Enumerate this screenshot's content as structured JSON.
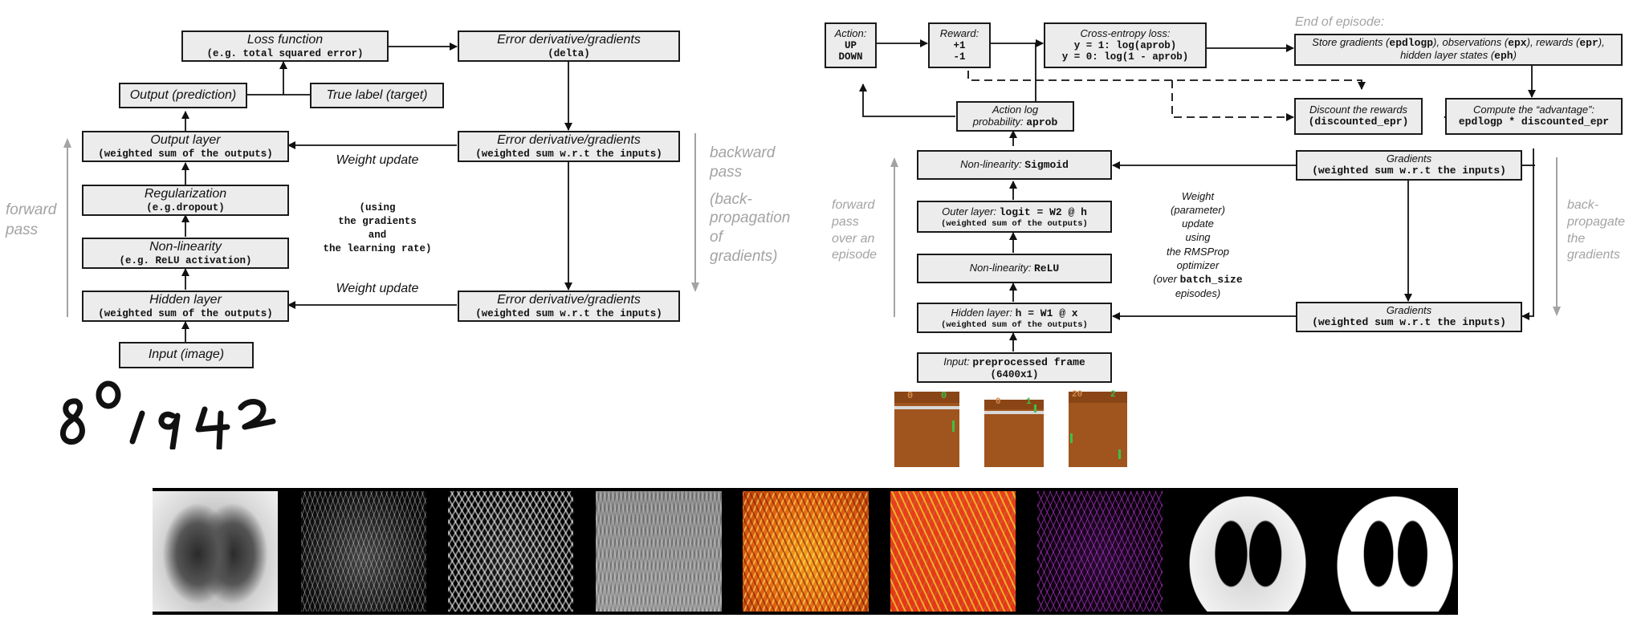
{
  "left_diagram": {
    "loss": {
      "title": "Loss function",
      "sub": "(e.g. total squared error)"
    },
    "error_top": {
      "title": "Error derivative/gradients",
      "sub": "(delta)"
    },
    "output_pred": "Output (prediction)",
    "true_label": "True label (target)",
    "output_layer": {
      "title": "Output layer",
      "sub": "(weighted sum of the outputs)"
    },
    "error_mid": {
      "title": "Error derivative/gradients",
      "sub": "(weighted sum w.r.t the inputs)"
    },
    "regularization": {
      "title": "Regularization",
      "sub": "(e.g.dropout)"
    },
    "nonlinearity": {
      "title": "Non-linearity",
      "sub": "(e.g. ReLU activation)"
    },
    "hidden_layer": {
      "title": "Hidden layer",
      "sub": "(weighted sum of the outputs)"
    },
    "error_bot": {
      "title": "Error derivative/gradients",
      "sub": "(weighted sum w.r.t the inputs)"
    },
    "input": "Input (image)",
    "weight_update_1": "Weight update",
    "weight_update_2": "Weight update",
    "using_note": [
      "(using",
      "the gradients",
      "and",
      "the learning rate)"
    ],
    "forward_pass": [
      "forward",
      "pass"
    ],
    "backward_pass": [
      "backward",
      "pass",
      "",
      "(back-",
      "propagation",
      "of",
      "gradients)"
    ],
    "handwritten_digits": "80,942"
  },
  "right_diagram": {
    "action": {
      "title": "Action:",
      "lines": [
        "UP",
        "DOWN"
      ]
    },
    "reward": {
      "title": "Reward:",
      "lines": [
        "+1",
        "-1"
      ]
    },
    "cross_entropy": {
      "title": "Cross-entropy loss:",
      "lines": [
        "y = 1: log(aprob)",
        "y = 0: log(1 - aprob)"
      ]
    },
    "end_of_episode": "End of episode:",
    "store_gradients": {
      "line1_parts": [
        "Store gradients (",
        "epdlogp",
        "), observations (",
        "epx",
        "), rewards (",
        "epr",
        "),"
      ],
      "line2_parts": [
        "hidden layer states (",
        "eph",
        ")"
      ]
    },
    "action_log": {
      "line1": "Action log",
      "line2_text": "probability: ",
      "line2_code": "aprob"
    },
    "discount": {
      "title": "Discount the rewards",
      "code": "(discounted_epr)"
    },
    "advantage": {
      "title": "Compute the “advantage”:",
      "code": "epdlogp * discounted_epr"
    },
    "sigmoid": {
      "text": "Non-linearity: ",
      "code": "Sigmoid"
    },
    "gradients_top": {
      "title": "Gradients",
      "sub": "(weighted sum w.r.t the inputs)"
    },
    "outer_layer": {
      "text": "Outer layer: ",
      "code": "logit = W2 @ h",
      "sub": "(weighted sum of the outputs)"
    },
    "relu": {
      "text": "Non-linearity: ",
      "code": "ReLU"
    },
    "hidden_layer": {
      "text": "Hidden layer: ",
      "code": "h = W1 @ x",
      "sub": "(weighted sum of the outputs)"
    },
    "gradients_bot": {
      "title": "Gradients",
      "sub": "(weighted sum w.r.t the inputs)"
    },
    "input": {
      "text": "Input: ",
      "code": "preprocessed frame",
      "sub": "(6400x1)"
    },
    "weight_note": [
      "Weight",
      "(parameter)",
      "update",
      "using",
      "the RMSProp",
      "optimizer",
      "(over "
    ],
    "weight_note_code": "batch_size",
    "weight_note_end": "episodes)",
    "forward_pass": [
      "forward",
      "pass",
      "over an",
      "episode"
    ],
    "backprop": [
      "back-",
      "propagate",
      "the",
      "gradients"
    ],
    "pong_scores": [
      [
        "0",
        "0"
      ],
      [
        "0",
        "1"
      ],
      [
        "20",
        "2"
      ]
    ]
  },
  "xray_strip": {
    "panels": [
      "original",
      "edges-thin",
      "edges-strong",
      "emboss",
      "heat-orange",
      "heat-red",
      "purple-edges",
      "lung-mask-gray",
      "lung-mask-binary"
    ]
  },
  "colors": {
    "box_fill": "#ececec",
    "gray_text": "#a3a3a3",
    "pong_brown": "#a0551f",
    "pong_green": "#3fbf4a"
  }
}
